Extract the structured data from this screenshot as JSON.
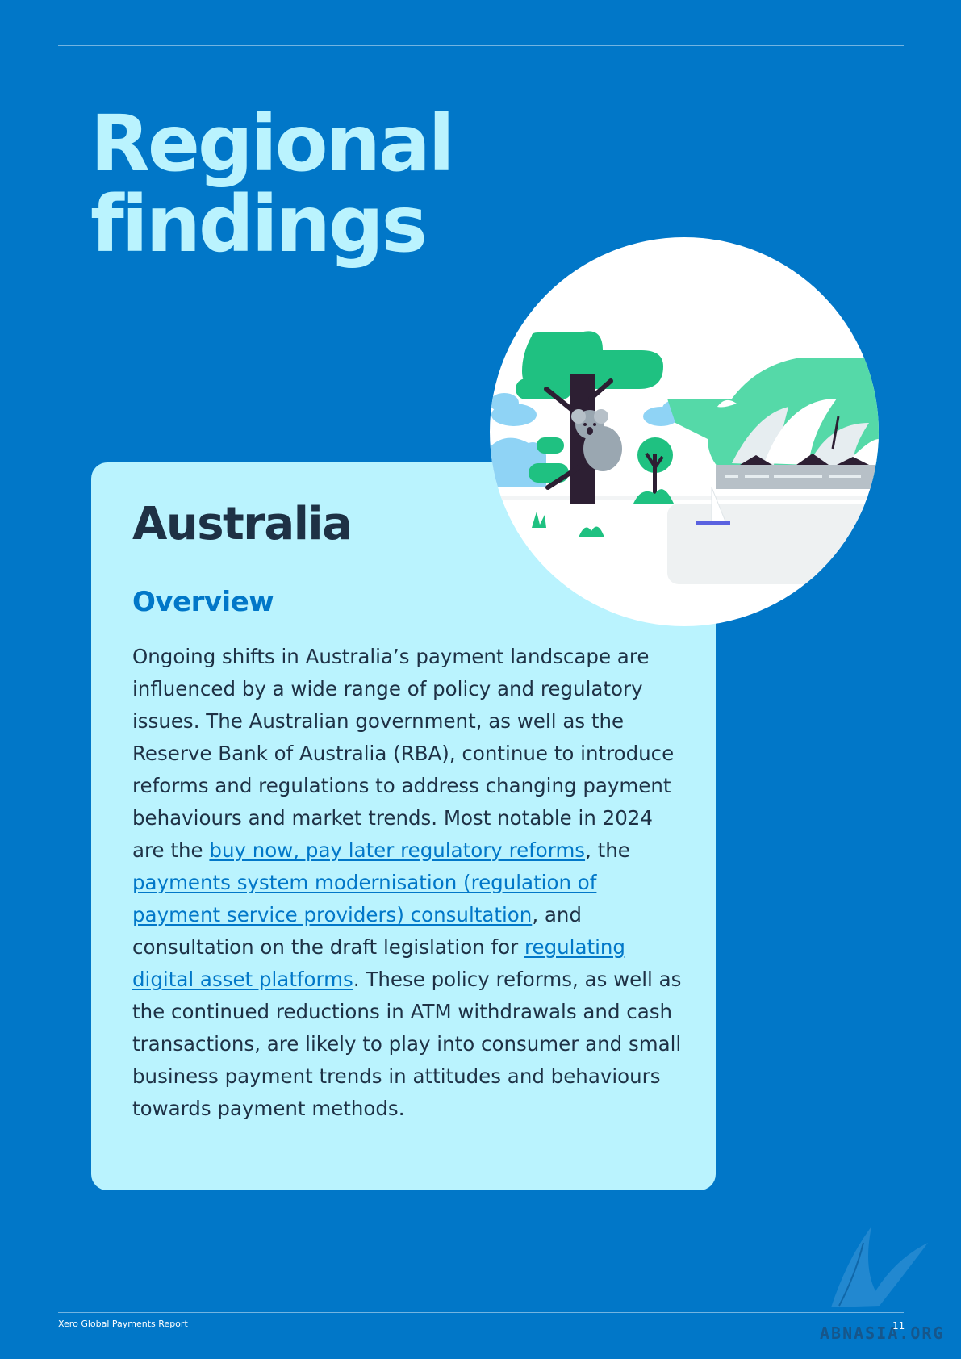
{
  "page": {
    "title_line1": "Regional",
    "title_line2": "findings"
  },
  "card": {
    "country": "Australia",
    "subheading": "Overview",
    "segments": [
      {
        "text": "Ongoing shifts in Australia’s payment landscape are influenced by a wide range of policy and regulatory issues. The Australian government, as well as the Reserve Bank of Australia (RBA), continue to introduce reforms and regulations to address changing payment behaviours and market trends. Most notable in 2024 are the "
      },
      {
        "text": "buy now, pay later regulatory reforms",
        "link": true
      },
      {
        "text": ", the "
      },
      {
        "text": "payments system modernisation (regulation of payment service providers) consultation",
        "link": true
      },
      {
        "text": ", and consultation on the draft legislation for "
      },
      {
        "text": "regulating digital asset platforms",
        "link": true
      },
      {
        "text": ". These policy reforms, as well as the continued reductions in ATM withdrawals and cash transactions, are likely to play into consumer and small business payment trends in attitudes and behaviours towards payment methods."
      }
    ]
  },
  "illustration": {
    "icon": "australia-koala-opera-house-illustration"
  },
  "footer": {
    "report_name": "Xero Global Payments Report",
    "page_number": "11"
  },
  "watermark": {
    "text": "ABNASIA.ORG"
  },
  "colors": {
    "background": "#0177c8",
    "title": "#baf3fe",
    "card": "#baf3fe",
    "heading_dark": "#1e3145",
    "link": "#0177c8"
  }
}
